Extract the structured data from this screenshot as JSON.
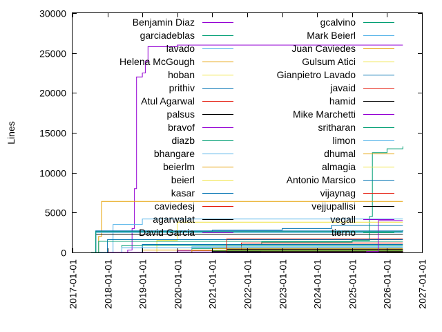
{
  "chart_data": {
    "type": "line",
    "title": "",
    "xlabel": "",
    "ylabel": "Lines",
    "x_type": "date",
    "xlim": [
      "2017-01-01",
      "2027-01-01"
    ],
    "ylim": [
      0,
      30000
    ],
    "grid": false,
    "legend_position": "top-inside, two columns",
    "x_ticks": [
      "2017-01-01",
      "2018-01-01",
      "2019-01-01",
      "2020-01-01",
      "2021-01-01",
      "2022-01-01",
      "2023-01-01",
      "2024-01-01",
      "2025-01-01",
      "2026-01-01",
      "2027-01-01"
    ],
    "y_ticks": [
      0,
      5000,
      10000,
      15000,
      20000,
      25000,
      30000
    ],
    "series": [
      {
        "name": "Benjamin Diaz",
        "color": "#9400d3",
        "points": [
          [
            "2017-07-15",
            0
          ],
          [
            "2018-08-01",
            300
          ],
          [
            "2018-09-15",
            3000
          ],
          [
            "2018-10-10",
            8000
          ],
          [
            "2018-11-01",
            22000
          ],
          [
            "2019-01-01",
            22500
          ],
          [
            "2019-02-01",
            24000
          ],
          [
            "2019-03-01",
            25800
          ],
          [
            "2020-01-01",
            26000
          ],
          [
            "2026-06-15",
            26000
          ]
        ]
      },
      {
        "name": "garciadeblas",
        "color": "#009e73",
        "points": [
          [
            "2017-07-15",
            0
          ],
          [
            "2020-06-01",
            500
          ],
          [
            "2021-06-01",
            1000
          ],
          [
            "2022-06-01",
            1300
          ],
          [
            "2025-01-01",
            1500
          ],
          [
            "2025-07-01",
            4500
          ],
          [
            "2025-08-01",
            12500
          ],
          [
            "2026-01-01",
            13000
          ],
          [
            "2026-06-15",
            13300
          ]
        ]
      },
      {
        "name": "lavado",
        "color": "#56b4e9",
        "points": [
          [
            "2017-09-01",
            0
          ],
          [
            "2018-03-01",
            3500
          ],
          [
            "2019-01-01",
            4200
          ],
          [
            "2026-06-15",
            4200
          ]
        ]
      },
      {
        "name": "Helena McGough",
        "color": "#e69f00",
        "points": [
          [
            "2017-07-15",
            0
          ],
          [
            "2017-10-01",
            2000
          ],
          [
            "2017-11-01",
            6400
          ],
          [
            "2026-06-15",
            6400
          ]
        ]
      },
      {
        "name": "hoban",
        "color": "#f0e442",
        "points": [
          [
            "2017-10-01",
            0
          ],
          [
            "2019-06-01",
            1500
          ],
          [
            "2020-01-01",
            3800
          ],
          [
            "2026-06-15",
            3800
          ]
        ]
      },
      {
        "name": "prithiv",
        "color": "#0072b2",
        "points": [
          [
            "2017-08-01",
            0
          ],
          [
            "2017-09-01",
            2700
          ],
          [
            "2026-06-15",
            2800
          ]
        ]
      },
      {
        "name": "Atul Agarwal",
        "color": "#e51e10",
        "points": [
          [
            "2018-01-01",
            0
          ],
          [
            "2021-11-01",
            1200
          ],
          [
            "2026-06-15",
            1200
          ]
        ]
      },
      {
        "name": "palsus",
        "color": "#000000",
        "points": [
          [
            "2017-08-01",
            0
          ],
          [
            "2017-09-01",
            2300
          ],
          [
            "2026-06-15",
            2300
          ]
        ]
      },
      {
        "name": "bravof",
        "color": "#9400d3",
        "points": [
          [
            "2020-01-01",
            0
          ],
          [
            "2021-01-01",
            100
          ],
          [
            "2026-06-15",
            150
          ]
        ]
      },
      {
        "name": "diazb",
        "color": "#009e73",
        "points": [
          [
            "2017-10-01",
            0
          ],
          [
            "2018-06-01",
            900
          ],
          [
            "2026-06-15",
            900
          ]
        ]
      },
      {
        "name": "bhangare",
        "color": "#56b4e9",
        "points": [
          [
            "2017-10-01",
            0
          ],
          [
            "2018-06-01",
            600
          ],
          [
            "2026-06-15",
            600
          ]
        ]
      },
      {
        "name": "beierlm",
        "color": "#e69f00",
        "points": [
          [
            "2018-01-01",
            0
          ],
          [
            "2021-01-01",
            500
          ],
          [
            "2026-06-15",
            500
          ]
        ]
      },
      {
        "name": "beierl",
        "color": "#f0e442",
        "points": [
          [
            "2018-01-01",
            0
          ],
          [
            "2020-06-01",
            300
          ],
          [
            "2026-06-15",
            300
          ]
        ]
      },
      {
        "name": "kasar",
        "color": "#0072b2",
        "points": [
          [
            "2017-10-01",
            0
          ],
          [
            "2018-01-01",
            1600
          ],
          [
            "2026-06-15",
            1600
          ]
        ]
      },
      {
        "name": "caviedesj",
        "color": "#e51e10",
        "points": [
          [
            "2018-01-01",
            0
          ],
          [
            "2021-06-01",
            250
          ],
          [
            "2026-06-15",
            250
          ]
        ]
      },
      {
        "name": "agarwalat",
        "color": "#000000",
        "points": [
          [
            "2018-06-01",
            0
          ],
          [
            "2021-06-01",
            400
          ],
          [
            "2026-06-15",
            400
          ]
        ]
      },
      {
        "name": "David Garcia",
        "color": "#9400d3",
        "points": [
          [
            "2018-06-01",
            0
          ],
          [
            "2020-01-01",
            200
          ],
          [
            "2026-06-15",
            200
          ]
        ]
      },
      {
        "name": "gcalvino",
        "color": "#009e73",
        "points": [
          [
            "2017-07-15",
            0
          ],
          [
            "2017-10-01",
            1400
          ],
          [
            "2026-06-15",
            1400
          ]
        ]
      },
      {
        "name": "Mark Beierl",
        "color": "#56b4e9",
        "points": [
          [
            "2018-01-01",
            0
          ],
          [
            "2020-06-01",
            700
          ],
          [
            "2026-06-15",
            700
          ]
        ]
      },
      {
        "name": "Juan Caviedes",
        "color": "#e69f00",
        "points": [
          [
            "2018-01-01",
            0
          ],
          [
            "2020-06-01",
            250
          ],
          [
            "2026-06-15",
            250
          ]
        ]
      },
      {
        "name": "Gulsum Atici",
        "color": "#f0e442",
        "points": [
          [
            "2018-01-01",
            0
          ],
          [
            "2022-01-01",
            150
          ],
          [
            "2026-06-15",
            150
          ]
        ]
      },
      {
        "name": "Gianpietro Lavado",
        "color": "#0072b2",
        "points": [
          [
            "2017-07-15",
            0
          ],
          [
            "2017-09-01",
            2700
          ],
          [
            "2021-01-01",
            2800
          ],
          [
            "2023-01-01",
            3000
          ],
          [
            "2024-06-01",
            3400
          ],
          [
            "2026-06-15",
            3400
          ]
        ]
      },
      {
        "name": "javaid",
        "color": "#e51e10",
        "points": [
          [
            "2018-01-01",
            0
          ],
          [
            "2021-06-01",
            100
          ],
          [
            "2026-06-15",
            100
          ]
        ]
      },
      {
        "name": "hamid",
        "color": "#000000",
        "points": [
          [
            "2018-01-01",
            0
          ],
          [
            "2021-06-01",
            50
          ],
          [
            "2026-06-15",
            50
          ]
        ]
      },
      {
        "name": "Mike Marchetti",
        "color": "#9400d3",
        "points": [
          [
            "2018-06-01",
            0
          ],
          [
            "2026-01-01",
            100
          ],
          [
            "2026-06-15",
            100
          ]
        ]
      },
      {
        "name": "sritharan",
        "color": "#009e73",
        "points": [
          [
            "2018-06-01",
            0
          ],
          [
            "2021-01-01",
            200
          ],
          [
            "2026-06-15",
            200
          ]
        ]
      },
      {
        "name": "limon",
        "color": "#56b4e9",
        "points": [
          [
            "2017-07-15",
            0
          ],
          [
            "2017-09-01",
            2500
          ],
          [
            "2026-06-15",
            2500
          ]
        ]
      },
      {
        "name": "dhumal",
        "color": "#e69f00",
        "points": [
          [
            "2018-01-01",
            0
          ],
          [
            "2019-01-01",
            300
          ],
          [
            "2026-06-15",
            300
          ]
        ]
      },
      {
        "name": "almagia",
        "color": "#f0e442",
        "points": [
          [
            "2018-06-01",
            0
          ],
          [
            "2022-06-01",
            100
          ],
          [
            "2026-06-15",
            100
          ]
        ]
      },
      {
        "name": "Antonio Marsico",
        "color": "#0072b2",
        "points": [
          [
            "2018-01-01",
            0
          ],
          [
            "2019-01-01",
            1000
          ],
          [
            "2026-06-15",
            1000
          ]
        ]
      },
      {
        "name": "vijaynag",
        "color": "#e51e10",
        "points": [
          [
            "2018-01-01",
            0
          ],
          [
            "2021-06-01",
            1700
          ],
          [
            "2022-01-01",
            1700
          ],
          [
            "2026-06-15",
            1700
          ]
        ]
      },
      {
        "name": "vejjupallisi",
        "color": "#000000",
        "points": [
          [
            "2018-06-01",
            0
          ],
          [
            "2021-01-01",
            100
          ],
          [
            "2026-06-15",
            100
          ]
        ]
      },
      {
        "name": "vegall",
        "color": "#9400d3",
        "points": [
          [
            "2018-01-01",
            0
          ],
          [
            "2025-06-01",
            100
          ],
          [
            "2025-10-01",
            4000
          ],
          [
            "2026-06-15",
            4000
          ]
        ]
      },
      {
        "name": "tierno",
        "color": "#009e73",
        "points": [
          [
            "2017-07-15",
            0
          ],
          [
            "2017-09-01",
            2600
          ],
          [
            "2026-06-15",
            2600
          ]
        ]
      }
    ]
  }
}
